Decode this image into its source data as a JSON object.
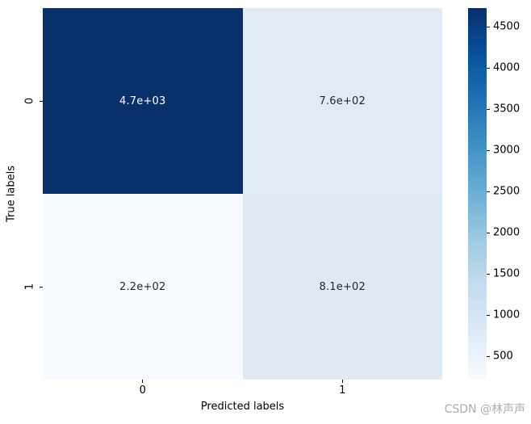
{
  "figure": {
    "background": "#ffffff",
    "watermark": "CSDN @林声声",
    "watermark_color": "#abadb3"
  },
  "chart_data": {
    "type": "heatmap",
    "title": "",
    "xlabel": "Predicted labels",
    "ylabel": "True labels",
    "x_ticklabels": [
      "0",
      "1"
    ],
    "y_ticklabels": [
      "0",
      "1"
    ],
    "matrix": [
      [
        4700,
        760
      ],
      [
        220,
        810
      ]
    ],
    "annotations": [
      [
        "4.7e+03",
        "7.6e+02"
      ],
      [
        "2.2e+02",
        "8.1e+02"
      ]
    ],
    "cell_colors": [
      [
        "#08306b",
        "#dfecf7"
      ],
      [
        "#f7fbff",
        "#dceaf6"
      ]
    ],
    "annotation_colors": [
      [
        "#ffffff",
        "#262626"
      ],
      [
        "#262626",
        "#262626"
      ]
    ],
    "grid": false,
    "colorbar": {
      "position": "right",
      "range": [
        220,
        4730
      ],
      "ticks": [
        500,
        1000,
        1500,
        2000,
        2500,
        3000,
        3500,
        4000,
        4500
      ],
      "colormap": "Blues",
      "stops_bottom_to_top": [
        "#f7fbff",
        "#deebf7",
        "#c6dbef",
        "#9ecae1",
        "#6baed6",
        "#4292c6",
        "#2171b5",
        "#08519c",
        "#08306b"
      ]
    }
  }
}
